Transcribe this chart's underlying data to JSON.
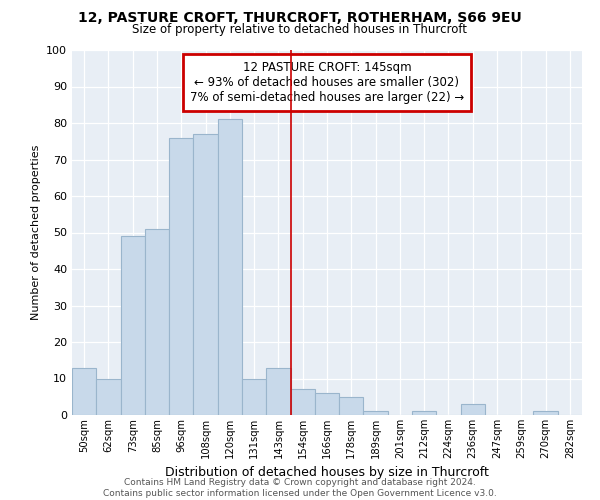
{
  "title1": "12, PASTURE CROFT, THURCROFT, ROTHERHAM, S66 9EU",
  "title2": "Size of property relative to detached houses in Thurcroft",
  "xlabel": "Distribution of detached houses by size in Thurcroft",
  "ylabel": "Number of detached properties",
  "categories": [
    "50sqm",
    "62sqm",
    "73sqm",
    "85sqm",
    "96sqm",
    "108sqm",
    "120sqm",
    "131sqm",
    "143sqm",
    "154sqm",
    "166sqm",
    "178sqm",
    "189sqm",
    "201sqm",
    "212sqm",
    "224sqm",
    "236sqm",
    "247sqm",
    "259sqm",
    "270sqm",
    "282sqm"
  ],
  "values": [
    13,
    10,
    49,
    51,
    76,
    77,
    81,
    10,
    13,
    7,
    6,
    5,
    1,
    0,
    1,
    0,
    3,
    0,
    0,
    1,
    0
  ],
  "bar_color": "#c8d9ea",
  "bar_edge_color": "#9ab5cc",
  "vline_x_index": 8,
  "annotation_title": "12 PASTURE CROFT: 145sqm",
  "annotation_line1": "← 93% of detached houses are smaller (302)",
  "annotation_line2": "7% of semi-detached houses are larger (22) →",
  "annotation_box_color": "#ffffff",
  "annotation_box_edge": "#cc0000",
  "vline_color": "#cc0000",
  "ylim": [
    0,
    100
  ],
  "yticks": [
    0,
    10,
    20,
    30,
    40,
    50,
    60,
    70,
    80,
    90,
    100
  ],
  "footer1": "Contains HM Land Registry data © Crown copyright and database right 2024.",
  "footer2": "Contains public sector information licensed under the Open Government Licence v3.0.",
  "bg_color": "#ffffff",
  "plot_bg_color": "#e8eef5",
  "grid_color": "#ffffff"
}
